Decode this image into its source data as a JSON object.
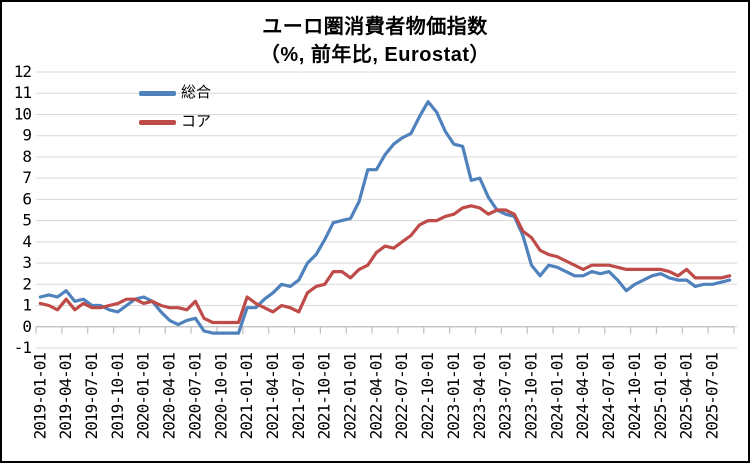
{
  "chart_data": {
    "type": "line",
    "title": "ユーロ圏消費者物価指数",
    "subtitle": "（%, 前年比, Eurostat）",
    "ylabel": "",
    "xlabel": "",
    "ylim": [
      -1,
      12
    ],
    "ytick_step": 1,
    "ytick_labels": [
      "-1",
      "0",
      "1",
      "2",
      "3",
      "4",
      "5",
      "6",
      "7",
      "8",
      "9",
      "10",
      "11",
      "12"
    ],
    "grid": true,
    "gridline_color": "#D9D9D9",
    "axis_color": "#BFBFBF",
    "text_color": "#000000",
    "legend_position": "upper-left-inside",
    "x_label_every": 3,
    "x_tick_labels": [
      "2019-01-01",
      "2019-04-01",
      "2019-07-01",
      "2019-10-01",
      "2020-01-01",
      "2020-04-01",
      "2020-07-01",
      "2020-10-01",
      "2021-01-01",
      "2021-04-01",
      "2021-07-01",
      "2021-10-01",
      "2022-01-01",
      "2022-04-01",
      "2022-07-01",
      "2022-10-01",
      "2023-01-01",
      "2023-04-01",
      "2023-07-01",
      "2023-10-01",
      "2024-01-01",
      "2024-04-01",
      "2024-07-01",
      "2024-10-01",
      "2025-01-01",
      "2025-04-01",
      "2025-07-01"
    ],
    "x": [
      "2019-01-01",
      "2019-02-01",
      "2019-03-01",
      "2019-04-01",
      "2019-05-01",
      "2019-06-01",
      "2019-07-01",
      "2019-08-01",
      "2019-09-01",
      "2019-10-01",
      "2019-11-01",
      "2019-12-01",
      "2020-01-01",
      "2020-02-01",
      "2020-03-01",
      "2020-04-01",
      "2020-05-01",
      "2020-06-01",
      "2020-07-01",
      "2020-08-01",
      "2020-09-01",
      "2020-10-01",
      "2020-11-01",
      "2020-12-01",
      "2021-01-01",
      "2021-02-01",
      "2021-03-01",
      "2021-04-01",
      "2021-05-01",
      "2021-06-01",
      "2021-07-01",
      "2021-08-01",
      "2021-09-01",
      "2021-10-01",
      "2021-11-01",
      "2021-12-01",
      "2022-01-01",
      "2022-02-01",
      "2022-03-01",
      "2022-04-01",
      "2022-05-01",
      "2022-06-01",
      "2022-07-01",
      "2022-08-01",
      "2022-09-01",
      "2022-10-01",
      "2022-11-01",
      "2022-12-01",
      "2023-01-01",
      "2023-02-01",
      "2023-03-01",
      "2023-04-01",
      "2023-05-01",
      "2023-06-01",
      "2023-07-01",
      "2023-08-01",
      "2023-09-01",
      "2023-10-01",
      "2023-11-01",
      "2023-12-01",
      "2024-01-01",
      "2024-02-01",
      "2024-03-01",
      "2024-04-01",
      "2024-05-01",
      "2024-06-01",
      "2024-07-01",
      "2024-08-01",
      "2024-09-01",
      "2024-10-01",
      "2024-11-01",
      "2024-12-01",
      "2025-01-01",
      "2025-02-01",
      "2025-03-01",
      "2025-04-01",
      "2025-05-01",
      "2025-06-01",
      "2025-07-01",
      "2025-08-01",
      "2025-09-01"
    ],
    "series": [
      {
        "name": "総合",
        "color": "#4F81BD",
        "values": [
          1.4,
          1.5,
          1.4,
          1.7,
          1.2,
          1.3,
          1.0,
          1.0,
          0.8,
          0.7,
          1.0,
          1.3,
          1.4,
          1.2,
          0.7,
          0.3,
          0.1,
          0.3,
          0.4,
          -0.2,
          -0.3,
          -0.3,
          -0.3,
          -0.3,
          0.9,
          0.9,
          1.3,
          1.6,
          2.0,
          1.9,
          2.2,
          3.0,
          3.4,
          4.1,
          4.9,
          5.0,
          5.1,
          5.9,
          7.4,
          7.4,
          8.1,
          8.6,
          8.9,
          9.1,
          9.9,
          10.6,
          10.1,
          9.2,
          8.6,
          8.5,
          6.9,
          7.0,
          6.1,
          5.5,
          5.3,
          5.2,
          4.3,
          2.9,
          2.4,
          2.9,
          2.8,
          2.6,
          2.4,
          2.4,
          2.6,
          2.5,
          2.6,
          2.2,
          1.7,
          2.0,
          2.2,
          2.4,
          2.5,
          2.3,
          2.2,
          2.2,
          1.9,
          2.0,
          2.0,
          2.1,
          2.2
        ]
      },
      {
        "name": "コア",
        "color": "#BE4B48",
        "values": [
          1.1,
          1.0,
          0.8,
          1.3,
          0.8,
          1.1,
          0.9,
          0.9,
          1.0,
          1.1,
          1.3,
          1.3,
          1.1,
          1.2,
          1.0,
          0.9,
          0.9,
          0.8,
          1.2,
          0.4,
          0.2,
          0.2,
          0.2,
          0.2,
          1.4,
          1.1,
          0.9,
          0.7,
          1.0,
          0.9,
          0.7,
          1.6,
          1.9,
          2.0,
          2.6,
          2.6,
          2.3,
          2.7,
          2.9,
          3.5,
          3.8,
          3.7,
          4.0,
          4.3,
          4.8,
          5.0,
          5.0,
          5.2,
          5.3,
          5.6,
          5.7,
          5.6,
          5.3,
          5.5,
          5.5,
          5.3,
          4.5,
          4.2,
          3.6,
          3.4,
          3.3,
          3.1,
          2.9,
          2.7,
          2.9,
          2.9,
          2.9,
          2.8,
          2.7,
          2.7,
          2.7,
          2.7,
          2.7,
          2.6,
          2.4,
          2.7,
          2.3,
          2.3,
          2.3,
          2.3,
          2.4
        ]
      }
    ]
  }
}
